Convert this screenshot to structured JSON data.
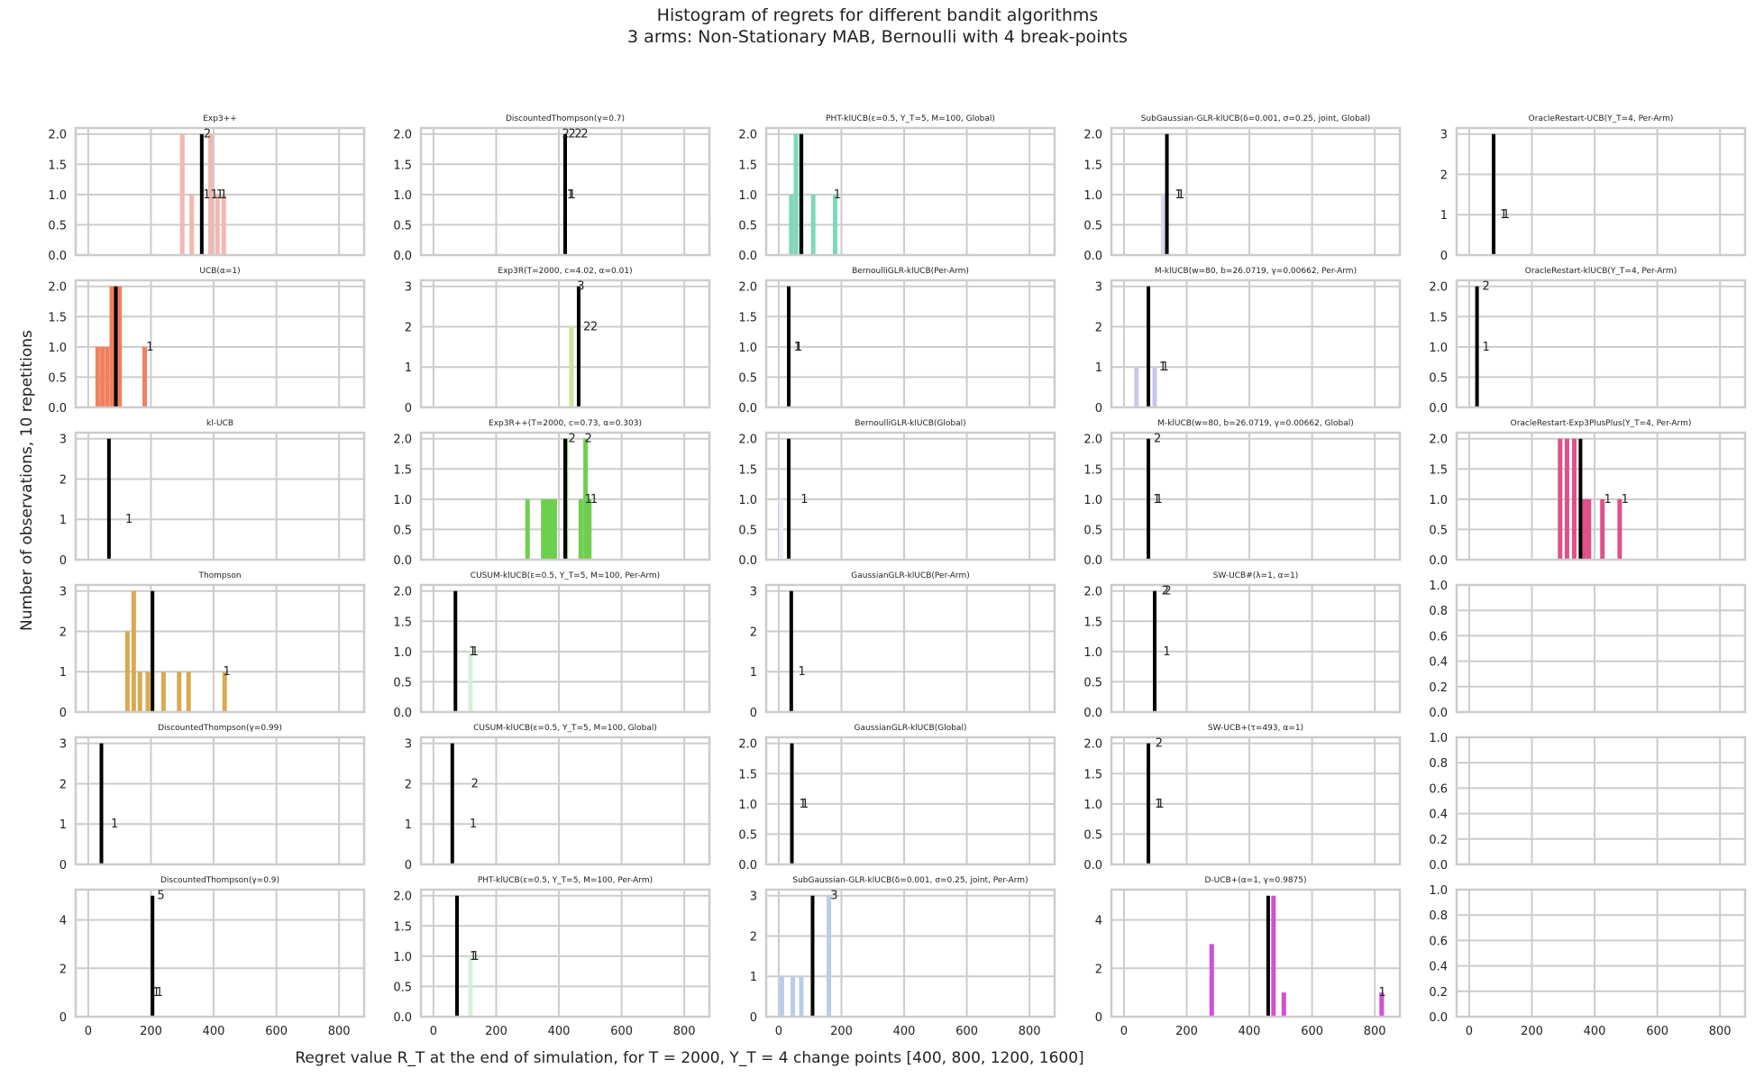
{
  "figure": {
    "title_line1": "Histogram of regrets for different bandit algorithms",
    "title_line2": "3 arms: Non-Stationary MAB, Bernoulli with 4 break-points",
    "xlabel": "Regret value R_T at the end of simulation, for T = 2000, Υ_T = 4 change points [400, 800, 1200, 1600]",
    "ylabel": "Number of observations, 10 repetitions"
  },
  "chart_data": [
    {
      "type": "bar",
      "title": "Exp3++",
      "color": "#f4b6b0",
      "xlim": [
        -40,
        880
      ],
      "ylim": [
        0,
        2.1
      ],
      "yticks": [
        0,
        0.5,
        1.0,
        1.5,
        2.0
      ],
      "bins": [
        {
          "x": 300,
          "h": 2
        },
        {
          "x": 330,
          "h": 1
        },
        {
          "x": 390,
          "h": 2
        },
        {
          "x": 412,
          "h": 1
        },
        {
          "x": 432,
          "h": 1
        }
      ],
      "mean": 362,
      "labels": [
        {
          "x": 368,
          "y": 2,
          "t": "2"
        },
        {
          "x": 366,
          "y": 1,
          "t": "1"
        },
        {
          "x": 390,
          "y": 1,
          "t": "1"
        },
        {
          "x": 408,
          "y": 1,
          "t": "1"
        },
        {
          "x": 420,
          "y": 1,
          "t": "1"
        }
      ]
    },
    {
      "type": "bar",
      "title": "DiscountedThompson(γ=0.7)",
      "color": "#e0e0e0",
      "xlim": [
        -40,
        880
      ],
      "ylim": [
        0,
        2.1
      ],
      "yticks": [
        0,
        0.5,
        1.0,
        1.5,
        2.0
      ],
      "bins": [],
      "mean": 420,
      "labels": [
        {
          "x": 410,
          "y": 2,
          "t": "2"
        },
        {
          "x": 430,
          "y": 2,
          "t": "2"
        },
        {
          "x": 450,
          "y": 2,
          "t": "2"
        },
        {
          "x": 470,
          "y": 2,
          "t": "2"
        },
        {
          "x": 425,
          "y": 1,
          "t": "1"
        },
        {
          "x": 430,
          "y": 1,
          "t": "1"
        }
      ]
    },
    {
      "type": "bar",
      "title": "PHT-klUCB(ε=0.5, Υ_T=5, M=100, Global)",
      "color": "#7fd8b8",
      "xlim": [
        -40,
        880
      ],
      "ylim": [
        0,
        2.1
      ],
      "yticks": [
        0,
        0.5,
        1.0,
        1.5,
        2.0
      ],
      "bins": [
        {
          "x": 40,
          "h": 1
        },
        {
          "x": 55,
          "h": 2
        },
        {
          "x": 72,
          "h": 2
        },
        {
          "x": 110,
          "h": 1
        },
        {
          "x": 180,
          "h": 1
        }
      ],
      "mean": 72,
      "labels": [
        {
          "x": 175,
          "y": 1,
          "t": "1"
        }
      ]
    },
    {
      "type": "bar",
      "title": "SubGaussian-GLR-klUCB(δ=0.001, σ=0.25, joint, Global)",
      "color": "#d8d8f0",
      "xlim": [
        -40,
        880
      ],
      "ylim": [
        0,
        2.1
      ],
      "yticks": [
        0,
        0.5,
        1.0,
        1.5,
        2.0
      ],
      "bins": [
        {
          "x": 125,
          "h": 1
        }
      ],
      "mean": 137,
      "labels": [
        {
          "x": 162,
          "y": 1,
          "t": "1"
        },
        {
          "x": 170,
          "y": 1,
          "t": "1"
        }
      ]
    },
    {
      "type": "bar",
      "title": "OracleRestart-UCB(Υ_T=4, Per-Arm)",
      "color": "#e0e0e0",
      "xlim": [
        -40,
        880
      ],
      "ylim": [
        0,
        3.15
      ],
      "yticks": [
        0,
        1,
        2,
        3
      ],
      "bins": [],
      "mean": 78,
      "labels": [
        {
          "x": 98,
          "y": 1,
          "t": "1"
        },
        {
          "x": 106,
          "y": 1,
          "t": "1"
        }
      ]
    },
    {
      "type": "bar",
      "title": "UCB(α=1)",
      "color": "#f08060",
      "xlim": [
        -40,
        880
      ],
      "ylim": [
        0,
        2.1
      ],
      "yticks": [
        0,
        0.5,
        1.0,
        1.5,
        2.0
      ],
      "bins": [
        {
          "x": 30,
          "h": 1
        },
        {
          "x": 45,
          "h": 1
        },
        {
          "x": 60,
          "h": 1
        },
        {
          "x": 75,
          "h": 2
        },
        {
          "x": 100,
          "h": 2
        },
        {
          "x": 180,
          "h": 1
        }
      ],
      "mean": 88,
      "labels": [
        {
          "x": 185,
          "y": 1,
          "t": "1"
        }
      ]
    },
    {
      "type": "bar",
      "title": "Exp3R(T=2000, c=4.02, α=0.01)",
      "color": "#c8e6a0",
      "xlim": [
        -40,
        880
      ],
      "ylim": [
        0,
        3.15
      ],
      "yticks": [
        0,
        1,
        2,
        3
      ],
      "bins": [
        {
          "x": 440,
          "h": 2
        }
      ],
      "mean": 463,
      "labels": [
        {
          "x": 458,
          "y": 3,
          "t": "3"
        },
        {
          "x": 478,
          "y": 2,
          "t": "2"
        },
        {
          "x": 500,
          "y": 2,
          "t": "2"
        }
      ]
    },
    {
      "type": "bar",
      "title": "BernoulliGLR-klUCB(Per-Arm)",
      "color": "#e0e0e0",
      "xlim": [
        -40,
        880
      ],
      "ylim": [
        0,
        2.1
      ],
      "yticks": [
        0,
        0.5,
        1.0,
        1.5,
        2.0
      ],
      "bins": [],
      "mean": 32,
      "labels": [
        {
          "x": 48,
          "y": 1,
          "t": "1"
        },
        {
          "x": 52,
          "y": 1,
          "t": "1"
        }
      ]
    },
    {
      "type": "bar",
      "title": "M-klUCB(w=80, b=26.0719, γ=0.00662, Per-Arm)",
      "color": "#c8c8ec",
      "xlim": [
        -40,
        880
      ],
      "ylim": [
        0,
        3.15
      ],
      "yticks": [
        0,
        1,
        2,
        3
      ],
      "bins": [
        {
          "x": 40,
          "h": 1
        },
        {
          "x": 98,
          "h": 1
        }
      ],
      "mean": 78,
      "labels": [
        {
          "x": 112,
          "y": 1,
          "t": "1"
        },
        {
          "x": 120,
          "y": 1,
          "t": "1"
        }
      ]
    },
    {
      "type": "bar",
      "title": "OracleRestart-klUCB(Υ_T=4, Per-Arm)",
      "color": "#e0e0e0",
      "xlim": [
        -40,
        880
      ],
      "ylim": [
        0,
        2.1
      ],
      "yticks": [
        0,
        0.5,
        1.0,
        1.5,
        2.0
      ],
      "bins": [],
      "mean": 25,
      "labels": [
        {
          "x": 42,
          "y": 2,
          "t": "2"
        },
        {
          "x": 42,
          "y": 1,
          "t": "1"
        }
      ]
    },
    {
      "type": "bar",
      "title": "kl-UCB",
      "color": "#e0e0e0",
      "xlim": [
        -40,
        880
      ],
      "ylim": [
        0,
        3.15
      ],
      "yticks": [
        0,
        1,
        2,
        3
      ],
      "bins": [],
      "mean": 66,
      "labels": [
        {
          "x": 118,
          "y": 1,
          "t": "1"
        }
      ]
    },
    {
      "type": "bar",
      "title": "Exp3R++(T=2000, c=0.73, α=0.303)",
      "color": "#6ecf4e",
      "xlim": [
        -40,
        880
      ],
      "ylim": [
        0,
        2.1
      ],
      "yticks": [
        0,
        0.5,
        1.0,
        1.5,
        2.0
      ],
      "bins": [
        {
          "x": 300,
          "h": 1
        },
        {
          "x": 350,
          "h": 1
        },
        {
          "x": 362,
          "h": 1
        },
        {
          "x": 375,
          "h": 1
        },
        {
          "x": 387,
          "h": 1
        },
        {
          "x": 422,
          "h": 2
        },
        {
          "x": 470,
          "h": 1
        },
        {
          "x": 485,
          "h": 2
        },
        {
          "x": 497,
          "h": 1
        }
      ],
      "mean": 420,
      "labels": [
        {
          "x": 430,
          "y": 2,
          "t": "2"
        },
        {
          "x": 482,
          "y": 2,
          "t": "2"
        },
        {
          "x": 482,
          "y": 1,
          "t": "1"
        },
        {
          "x": 500,
          "y": 1,
          "t": "1"
        }
      ]
    },
    {
      "type": "bar",
      "title": "BernoulliGLR-klUCB(Global)",
      "color": "#eeeef8",
      "xlim": [
        -40,
        880
      ],
      "ylim": [
        0,
        2.1
      ],
      "yticks": [
        0,
        0.5,
        1.0,
        1.5,
        2.0
      ],
      "bins": [
        {
          "x": 8,
          "h": 1
        }
      ],
      "mean": 32,
      "labels": [
        {
          "x": 70,
          "y": 1,
          "t": "1"
        }
      ]
    },
    {
      "type": "bar",
      "title": "M-klUCB(w=80, b=26.0719, γ=0.00662, Global)",
      "color": "#e0e0e0",
      "xlim": [
        -40,
        880
      ],
      "ylim": [
        0,
        2.1
      ],
      "yticks": [
        0,
        0.5,
        1.0,
        1.5,
        2.0
      ],
      "bins": [],
      "mean": 78,
      "labels": [
        {
          "x": 95,
          "y": 2,
          "t": "2"
        },
        {
          "x": 93,
          "y": 1,
          "t": "1"
        },
        {
          "x": 100,
          "y": 1,
          "t": "1"
        }
      ]
    },
    {
      "type": "bar",
      "title": "OracleRestart-Exp3PlusPlus(Υ_T=4, Per-Arm)",
      "color": "#e0508a",
      "xlim": [
        -40,
        880
      ],
      "ylim": [
        0,
        2.1
      ],
      "yticks": [
        0,
        0.5,
        1.0,
        1.5,
        2.0
      ],
      "bins": [
        {
          "x": 290,
          "h": 2
        },
        {
          "x": 312,
          "h": 2
        },
        {
          "x": 335,
          "h": 2
        },
        {
          "x": 357,
          "h": 1
        },
        {
          "x": 370,
          "h": 1
        },
        {
          "x": 382,
          "h": 1
        },
        {
          "x": 425,
          "h": 1
        },
        {
          "x": 480,
          "h": 1
        }
      ],
      "mean": 355,
      "labels": [
        {
          "x": 430,
          "y": 1,
          "t": "1"
        },
        {
          "x": 485,
          "y": 1,
          "t": "1"
        }
      ]
    },
    {
      "type": "bar",
      "title": "Thompson",
      "color": "#d8aa50",
      "xlim": [
        -40,
        880
      ],
      "ylim": [
        0,
        3.15
      ],
      "yticks": [
        0,
        1,
        2,
        3
      ],
      "bins": [
        {
          "x": 125,
          "h": 2
        },
        {
          "x": 145,
          "h": 3
        },
        {
          "x": 165,
          "h": 1
        },
        {
          "x": 190,
          "h": 1
        },
        {
          "x": 240,
          "h": 1
        },
        {
          "x": 290,
          "h": 1
        },
        {
          "x": 320,
          "h": 1
        },
        {
          "x": 435,
          "h": 1
        }
      ],
      "mean": 205,
      "labels": [
        {
          "x": 430,
          "y": 1,
          "t": "1"
        }
      ]
    },
    {
      "type": "bar",
      "title": "CUSUM-klUCB(ε=0.5, Υ_T=5, M=100, Per-Arm)",
      "color": "#d8f0d8",
      "xlim": [
        -40,
        880
      ],
      "ylim": [
        0,
        2.1
      ],
      "yticks": [
        0,
        0.5,
        1.0,
        1.5,
        2.0
      ],
      "bins": [
        {
          "x": 118,
          "h": 1
        }
      ],
      "mean": 70,
      "labels": [
        {
          "x": 113,
          "y": 1,
          "t": "1"
        },
        {
          "x": 120,
          "y": 1,
          "t": "1"
        }
      ]
    },
    {
      "type": "bar",
      "title": "GaussianGLR-klUCB(Per-Arm)",
      "color": "#e0e0e0",
      "xlim": [
        -40,
        880
      ],
      "ylim": [
        0,
        3.15
      ],
      "yticks": [
        0,
        1,
        2,
        3
      ],
      "bins": [],
      "mean": 40,
      "labels": [
        {
          "x": 62,
          "y": 1,
          "t": "1"
        }
      ]
    },
    {
      "type": "bar",
      "title": "SW-UCB#(λ=1, α=1)",
      "color": "#e0e0e0",
      "xlim": [
        -40,
        880
      ],
      "ylim": [
        0,
        2.1
      ],
      "yticks": [
        0,
        0.5,
        1.0,
        1.5,
        2.0
      ],
      "bins": [],
      "mean": 98,
      "labels": [
        {
          "x": 120,
          "y": 2,
          "t": "2"
        },
        {
          "x": 128,
          "y": 2,
          "t": "2"
        },
        {
          "x": 125,
          "y": 1,
          "t": "1"
        }
      ]
    },
    {
      "type": "empty",
      "xlim": [
        -40,
        880
      ],
      "ylim": [
        0,
        1.0
      ],
      "yticks": [
        0,
        0.2,
        0.4,
        0.6,
        0.8,
        1.0
      ]
    },
    {
      "type": "bar",
      "title": "DiscountedThompson(γ=0.99)",
      "color": "#e0e0e0",
      "xlim": [
        -40,
        880
      ],
      "ylim": [
        0,
        3.15
      ],
      "yticks": [
        0,
        1,
        2,
        3
      ],
      "bins": [],
      "mean": 42,
      "labels": [
        {
          "x": 72,
          "y": 1,
          "t": "1"
        }
      ]
    },
    {
      "type": "bar",
      "title": "CUSUM-klUCB(ε=0.5, Υ_T=5, M=100, Global)",
      "color": "#e0e0e0",
      "xlim": [
        -40,
        880
      ],
      "ylim": [
        0,
        3.15
      ],
      "yticks": [
        0,
        1,
        2,
        3
      ],
      "bins": [],
      "mean": 60,
      "labels": [
        {
          "x": 120,
          "y": 2,
          "t": "2"
        },
        {
          "x": 115,
          "y": 1,
          "t": "1"
        }
      ]
    },
    {
      "type": "bar",
      "title": "GaussianGLR-klUCB(Global)",
      "color": "#e0e0e0",
      "xlim": [
        -40,
        880
      ],
      "ylim": [
        0,
        2.1
      ],
      "yticks": [
        0,
        0.5,
        1.0,
        1.5,
        2.0
      ],
      "bins": [],
      "mean": 42,
      "labels": [
        {
          "x": 65,
          "y": 1,
          "t": "1"
        },
        {
          "x": 72,
          "y": 1,
          "t": "1"
        }
      ]
    },
    {
      "type": "bar",
      "title": "SW-UCB+(τ=493, α=1)",
      "color": "#e0e0e0",
      "xlim": [
        -40,
        880
      ],
      "ylim": [
        0,
        2.1
      ],
      "yticks": [
        0,
        0.5,
        1.0,
        1.5,
        2.0
      ],
      "bins": [],
      "mean": 78,
      "labels": [
        {
          "x": 100,
          "y": 2,
          "t": "2"
        },
        {
          "x": 98,
          "y": 1,
          "t": "1"
        },
        {
          "x": 105,
          "y": 1,
          "t": "1"
        }
      ]
    },
    {
      "type": "empty",
      "xlim": [
        -40,
        880
      ],
      "ylim": [
        0,
        1.0
      ],
      "yticks": [
        0,
        0.2,
        0.4,
        0.6,
        0.8,
        1.0
      ]
    },
    {
      "type": "bar",
      "title": "DiscountedThompson(γ=0.9)",
      "color": "#e0e0e0",
      "xlim": [
        -40,
        880
      ],
      "ylim": [
        0,
        5.25
      ],
      "yticks": [
        0,
        2,
        4
      ],
      "bins": [],
      "mean": 205,
      "labels": [
        {
          "x": 220,
          "y": 5,
          "t": "5"
        },
        {
          "x": 205,
          "y": 1,
          "t": "1"
        },
        {
          "x": 215,
          "y": 1,
          "t": "1"
        }
      ]
    },
    {
      "type": "bar",
      "title": "PHT-klUCB(ε=0.5, Υ_T=5, M=100, Per-Arm)",
      "color": "#d8f0d8",
      "xlim": [
        -40,
        880
      ],
      "ylim": [
        0,
        2.1
      ],
      "yticks": [
        0,
        0.5,
        1.0,
        1.5,
        2.0
      ],
      "bins": [
        {
          "x": 118,
          "h": 1
        }
      ],
      "mean": 75,
      "labels": [
        {
          "x": 115,
          "y": 1,
          "t": "1"
        },
        {
          "x": 122,
          "y": 1,
          "t": "1"
        }
      ]
    },
    {
      "type": "bar",
      "title": "SubGaussian-GLR-klUCB(δ=0.001, σ=0.25, joint, Per-Arm)",
      "color": "#b8cced",
      "xlim": [
        -40,
        880
      ],
      "ylim": [
        0,
        3.15
      ],
      "yticks": [
        0,
        1,
        2,
        3
      ],
      "bins": [
        {
          "x": 10,
          "h": 1
        },
        {
          "x": 45,
          "h": 1
        },
        {
          "x": 72,
          "h": 1
        },
        {
          "x": 160,
          "h": 3
        }
      ],
      "mean": 108,
      "labels": [
        {
          "x": 165,
          "y": 3,
          "t": "3"
        }
      ]
    },
    {
      "type": "bar",
      "title": "D-UCB+(α=1, γ=0.9875)",
      "color": "#d050d8",
      "xlim": [
        -40,
        880
      ],
      "ylim": [
        0,
        5.25
      ],
      "yticks": [
        0,
        2,
        4
      ],
      "bins": [
        {
          "x": 280,
          "h": 3
        },
        {
          "x": 477,
          "h": 5
        },
        {
          "x": 510,
          "h": 1
        },
        {
          "x": 822,
          "h": 1
        }
      ],
      "mean": 460,
      "labels": [
        {
          "x": 812,
          "y": 1,
          "t": "1"
        }
      ]
    },
    {
      "type": "empty",
      "xlim": [
        -40,
        880
      ],
      "ylim": [
        0,
        1.0
      ],
      "yticks": [
        0,
        0.2,
        0.4,
        0.6,
        0.8,
        1.0
      ]
    }
  ]
}
